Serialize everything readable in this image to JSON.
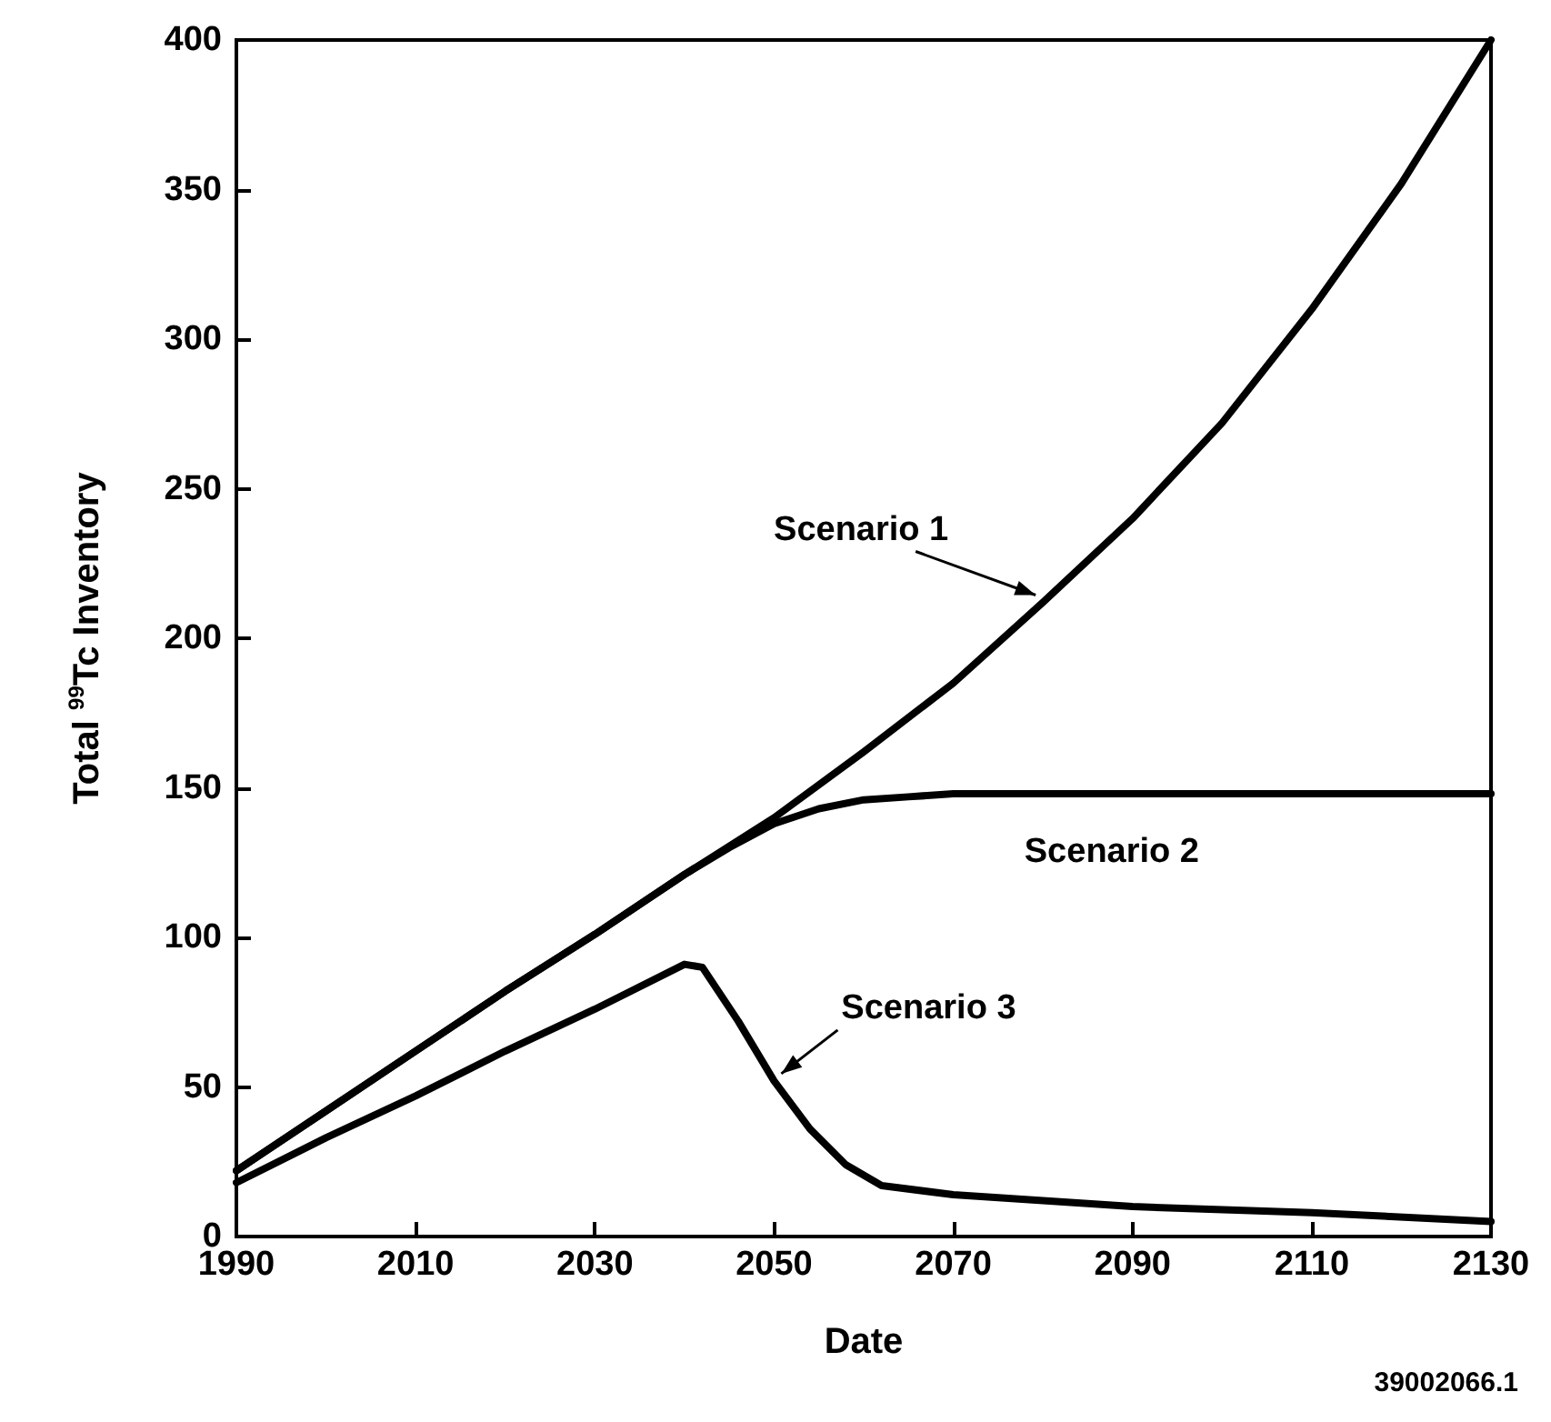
{
  "chart_data": {
    "type": "line",
    "xlabel": "Date",
    "ylabel": "Total $^{99}$Tc Inventory",
    "xlim": [
      1990,
      2130
    ],
    "xticks": [
      1990,
      2010,
      2030,
      2050,
      2070,
      2090,
      2110,
      2130
    ],
    "ylim": [
      0,
      400
    ],
    "yticks": [
      0,
      50,
      100,
      150,
      200,
      250,
      300,
      350,
      400
    ],
    "grid": false,
    "legend": false,
    "marker": "none",
    "line_style": "solid",
    "series": [
      {
        "name": "Scenario 1",
        "color": "#000000",
        "x": [
          1990,
          2000,
          2010,
          2020,
          2030,
          2040,
          2050,
          2060,
          2070,
          2080,
          2090,
          2100,
          2110,
          2120,
          2130
        ],
        "values": [
          22,
          42,
          62,
          82,
          101,
          121,
          140,
          162,
          185,
          212,
          240,
          272,
          310,
          352,
          400
        ]
      },
      {
        "name": "Scenario 2",
        "color": "#000000",
        "x": [
          1990,
          2000,
          2010,
          2020,
          2030,
          2040,
          2045,
          2050,
          2055,
          2060,
          2065,
          2070,
          2090,
          2110,
          2130
        ],
        "values": [
          22,
          42,
          62,
          82,
          101,
          121,
          130,
          138,
          143,
          146,
          147,
          148,
          148,
          148,
          148
        ]
      },
      {
        "name": "Scenario 3",
        "color": "#000000",
        "x": [
          1990,
          2000,
          2010,
          2020,
          2030,
          2040,
          2042,
          2046,
          2050,
          2054,
          2058,
          2062,
          2070,
          2090,
          2110,
          2130
        ],
        "values": [
          18,
          33,
          47,
          62,
          76,
          91,
          90,
          72,
          52,
          36,
          24,
          17,
          14,
          10,
          8,
          5
        ]
      }
    ],
    "annotations": [
      "39002066.1"
    ]
  }
}
